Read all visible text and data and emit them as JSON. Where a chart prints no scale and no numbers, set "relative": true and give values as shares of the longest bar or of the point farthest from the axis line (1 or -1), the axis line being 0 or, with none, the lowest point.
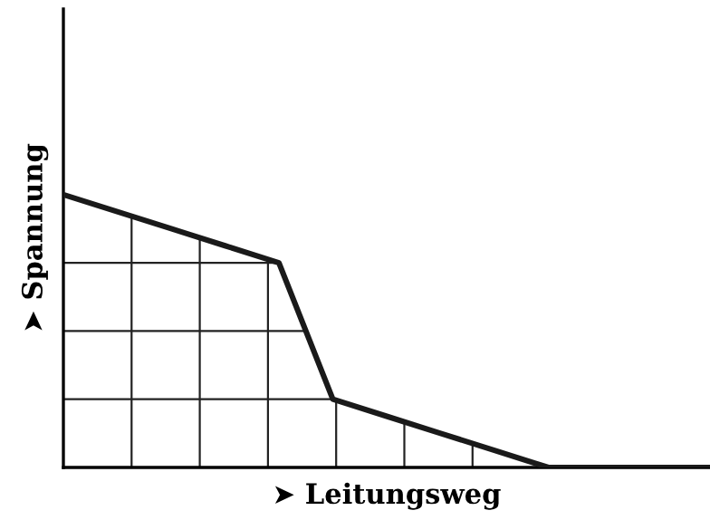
{
  "chart_data": {
    "type": "line",
    "relative": true,
    "xlabel": "➤ Leitungsweg",
    "ylabel": "➤ Spannung",
    "categories": [
      null,
      null,
      null,
      null,
      null,
      null,
      null,
      null,
      null,
      null,
      null,
      null,
      null
    ],
    "series": [
      {
        "color": "#1a1a1a",
        "values": [
          1,
          0.9375,
          0.875,
          0.8125,
          0.75,
          0.25,
          0.1875,
          0.125,
          0.0625,
          0,
          0,
          0,
          0
        ]
      }
    ],
    "grid": true,
    "marker": "none",
    "line_style": "solid"
  }
}
